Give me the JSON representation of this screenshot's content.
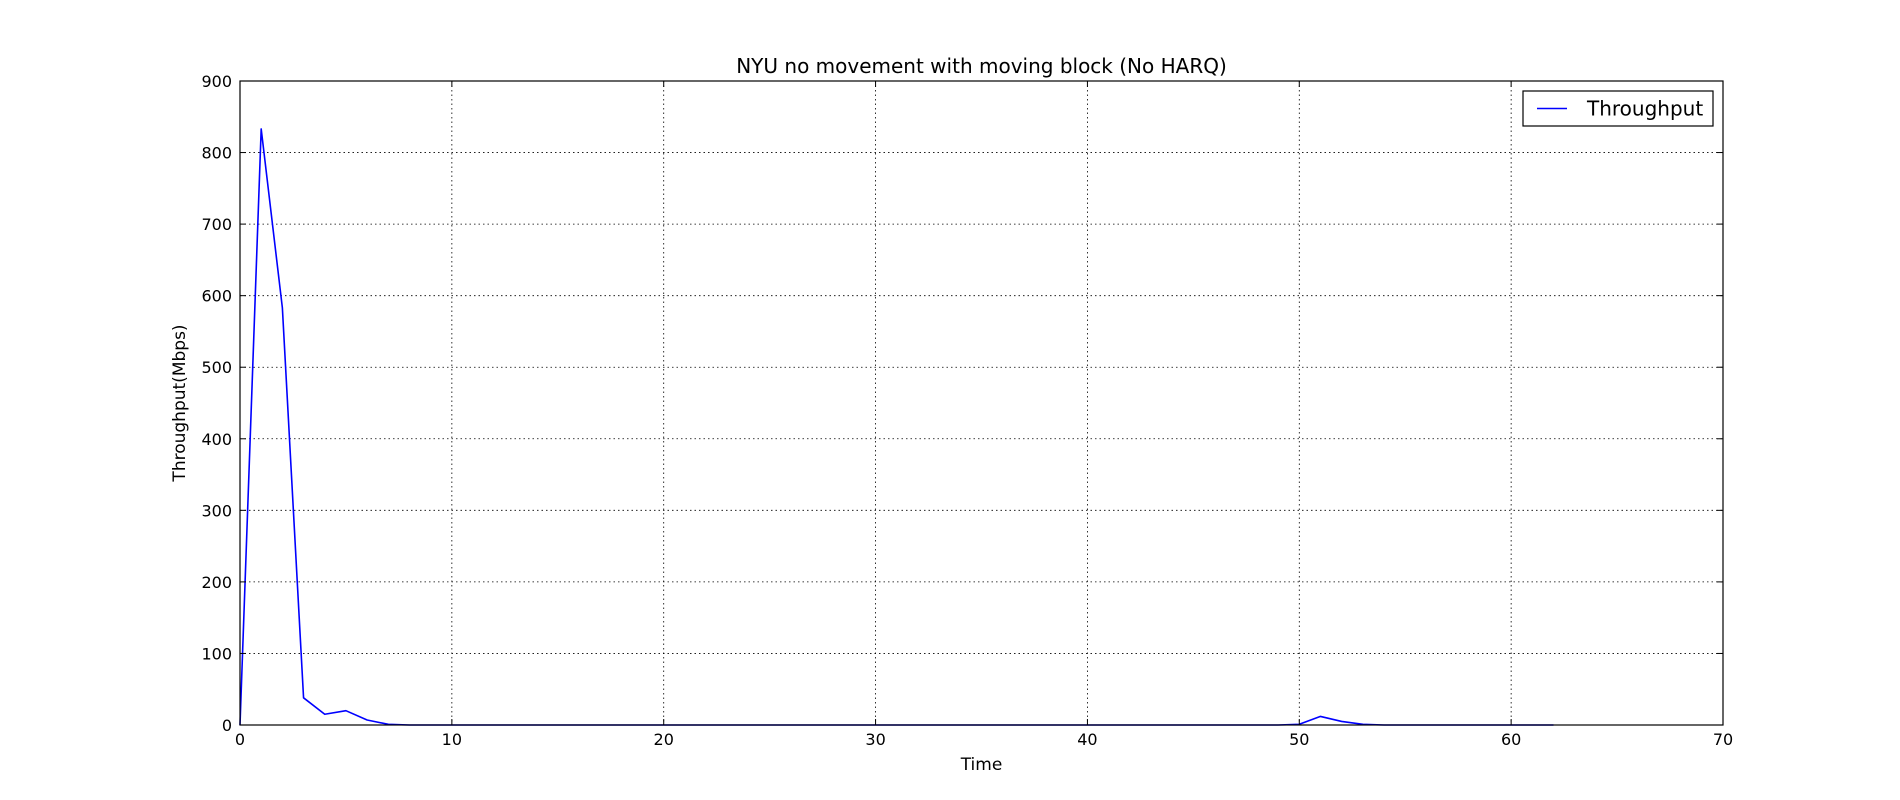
{
  "chart_data": {
    "type": "line",
    "title": "NYU no movement with moving block (No HARQ)",
    "xlabel": "Time",
    "ylabel": "Throughput(Mbps)",
    "xlim": [
      0,
      70
    ],
    "ylim": [
      0,
      900
    ],
    "xticks": [
      0,
      10,
      20,
      30,
      40,
      50,
      60,
      70
    ],
    "yticks": [
      0,
      100,
      200,
      300,
      400,
      500,
      600,
      700,
      800,
      900
    ],
    "grid": true,
    "legend_position": "top-right",
    "series": [
      {
        "name": "Throughput",
        "color": "#0000ff",
        "x": [
          0,
          1,
          2,
          3,
          4,
          5,
          6,
          7,
          8,
          9,
          10,
          15,
          20,
          25,
          30,
          35,
          40,
          45,
          49,
          50,
          51,
          52,
          53,
          54,
          55,
          60,
          62
        ],
        "y": [
          0,
          833,
          583,
          38,
          15,
          20,
          7,
          1,
          0,
          0,
          0,
          0,
          0,
          0,
          0,
          0,
          0,
          0,
          0,
          1,
          12,
          5,
          1,
          0,
          0,
          0,
          0
        ]
      }
    ]
  }
}
